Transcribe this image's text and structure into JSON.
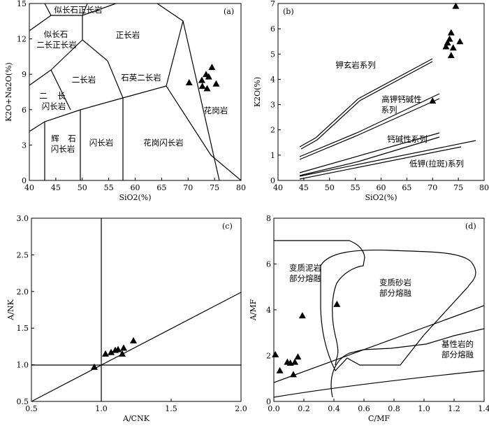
{
  "chart_data": [
    {
      "panel": "(a)",
      "type": "scatter",
      "xlabel": "SiO2(%)",
      "ylabel": "K2O+Na2O(%)",
      "xlim": [
        40,
        80
      ],
      "ylim": [
        0,
        15
      ],
      "x_ticks": [
        "40",
        "45",
        "50",
        "55",
        "60",
        "65",
        "70",
        "75",
        "80"
      ],
      "y_ticks": [
        "0",
        "3",
        "6",
        "9",
        "12",
        "15"
      ],
      "region_labels": [
        "似长石正长岩",
        "似长石",
        "二长正长岩",
        "正长岩",
        "二长岩",
        "石英二长岩",
        "二",
        "长",
        "闪长岩",
        "辉",
        "石",
        "闪长岩",
        "闪长岩",
        "花岗闪长岩",
        "花岗岩"
      ],
      "points": [
        {
          "x": 70.2,
          "y": 8.3
        },
        {
          "x": 72.6,
          "y": 8.5
        },
        {
          "x": 72.7,
          "y": 8.0
        },
        {
          "x": 73.4,
          "y": 9.0
        },
        {
          "x": 73.9,
          "y": 8.8
        },
        {
          "x": 73.6,
          "y": 7.8
        },
        {
          "x": 74.5,
          "y": 9.6
        },
        {
          "x": 75.3,
          "y": 8.2
        }
      ],
      "marker": "filled triangle"
    },
    {
      "panel": "(b)",
      "type": "scatter",
      "xlabel": "SiO2(%)",
      "ylabel": "K2O(%)",
      "xlim": [
        40,
        80
      ],
      "ylim": [
        0,
        7
      ],
      "x_ticks": [
        "40",
        "45",
        "50",
        "55",
        "60",
        "65",
        "70",
        "75",
        "80"
      ],
      "y_ticks": [
        "0",
        "1",
        "2",
        "3",
        "4",
        "5",
        "6",
        "7"
      ],
      "series_labels": [
        "钾玄岩系列",
        "高钾钙碱性",
        "系列",
        "钙碱性系列",
        "低钾(拉斑)系列"
      ],
      "points": [
        {
          "x": 70.0,
          "y": 3.15
        },
        {
          "x": 72.6,
          "y": 5.3
        },
        {
          "x": 72.9,
          "y": 5.45
        },
        {
          "x": 73.3,
          "y": 5.6
        },
        {
          "x": 73.6,
          "y": 5.85
        },
        {
          "x": 73.6,
          "y": 4.95
        },
        {
          "x": 74.0,
          "y": 5.25
        },
        {
          "x": 74.5,
          "y": 6.9
        },
        {
          "x": 75.3,
          "y": 5.5
        }
      ],
      "marker": "filled triangle"
    },
    {
      "panel": "(c)",
      "type": "scatter",
      "xlabel": "A/CNK",
      "ylabel": "A/NK",
      "xlim": [
        0.5,
        2.0
      ],
      "ylim": [
        0.5,
        3.0
      ],
      "x_ticks": [
        "0.5",
        "1.0",
        "1.5",
        "2.0"
      ],
      "y_ticks": [
        "0.5",
        "1.0",
        "1.5",
        "2.0",
        "2.5",
        "3.0"
      ],
      "points": [
        {
          "x": 0.95,
          "y": 0.97
        },
        {
          "x": 1.03,
          "y": 1.15
        },
        {
          "x": 1.07,
          "y": 1.17
        },
        {
          "x": 1.1,
          "y": 1.2
        },
        {
          "x": 1.12,
          "y": 1.21
        },
        {
          "x": 1.15,
          "y": 1.15
        },
        {
          "x": 1.16,
          "y": 1.23
        },
        {
          "x": 1.23,
          "y": 1.33
        }
      ],
      "marker": "filled triangle"
    },
    {
      "panel": "(d)",
      "type": "scatter",
      "xlabel": "C/MF",
      "ylabel": "A/MF",
      "xlim": [
        0,
        1.4
      ],
      "ylim": [
        0,
        8
      ],
      "x_ticks": [
        "0.0",
        "0.2",
        "0.4",
        "0.6",
        "0.8",
        "1.0",
        "1.2",
        "1.4"
      ],
      "y_ticks": [
        "0",
        "2",
        "4",
        "6",
        "8"
      ],
      "region_labels": [
        "变质泥岩",
        "部分熔融",
        "变质砂岩",
        "部分熔融",
        "基性岩的",
        "部分熔融"
      ],
      "points": [
        {
          "x": 0.01,
          "y": 2.05
        },
        {
          "x": 0.04,
          "y": 1.35
        },
        {
          "x": 0.09,
          "y": 1.72
        },
        {
          "x": 0.11,
          "y": 1.68
        },
        {
          "x": 0.13,
          "y": 1.18
        },
        {
          "x": 0.14,
          "y": 1.72
        },
        {
          "x": 0.16,
          "y": 1.95
        },
        {
          "x": 0.19,
          "y": 3.75
        },
        {
          "x": 0.42,
          "y": 4.25
        }
      ],
      "marker": "filled triangle"
    }
  ]
}
